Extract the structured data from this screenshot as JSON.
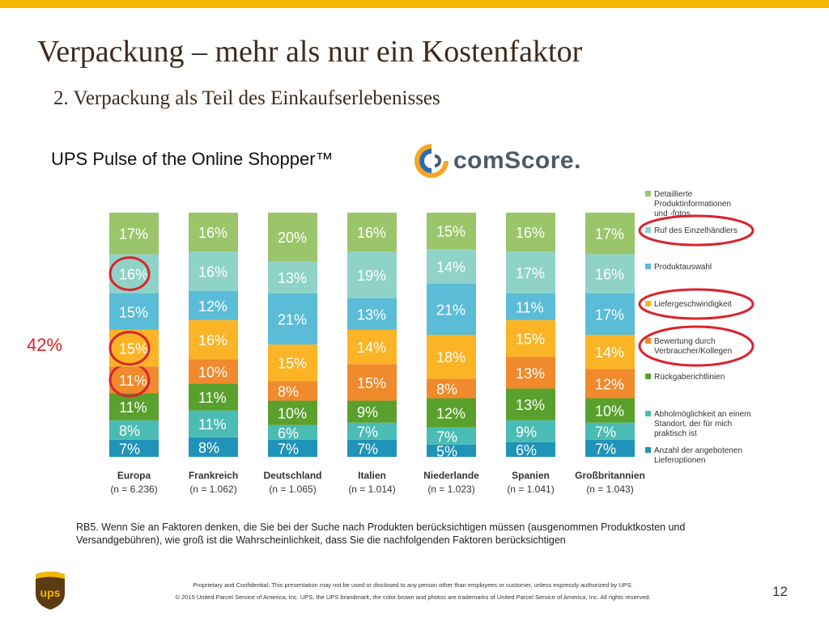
{
  "header": {
    "title": "Verpackung – mehr als nur ein Kostenfaktor",
    "subtitle": "2. Verpackung als Teil des Einkaufserlebenisses",
    "pulse_title": "UPS Pulse of the Online Shopper™",
    "comscore_logo_text": "comScore."
  },
  "callout_label": "42%",
  "chart_data": {
    "type": "bar",
    "stacked": true,
    "normalized": true,
    "categories": [
      "Europa",
      "Frankreich",
      "Deutschland",
      "Italien",
      "Niederlande",
      "Spanien",
      "Großbritannien"
    ],
    "sample_sizes": [
      "(n = 6.236)",
      "(n = 1.062)",
      "(n = 1.065)",
      "(n = 1.014)",
      "(n = 1.023)",
      "(n = 1.041)",
      "(n = 1.043)"
    ],
    "series": [
      {
        "name": "Anzahl der angebotenen Lieferoptionen",
        "color": "#1f93b8",
        "values": [
          7,
          8,
          7,
          7,
          5,
          6,
          7
        ]
      },
      {
        "name": "Abholmöglichkeit an einem Standort, der für mich praktisch ist",
        "color": "#4bbcb4",
        "values": [
          8,
          11,
          6,
          7,
          7,
          9,
          7
        ]
      },
      {
        "name": "Rückgaberichtlinien",
        "color": "#5aa02c",
        "values": [
          11,
          11,
          10,
          9,
          12,
          13,
          10
        ]
      },
      {
        "name": "Bewertung durch Verbraucher/Kollegen",
        "color": "#f08a2c",
        "values": [
          11,
          10,
          8,
          15,
          8,
          13,
          12
        ]
      },
      {
        "name": "Liefergeschwindigkeit",
        "color": "#fbb425",
        "values": [
          15,
          16,
          15,
          14,
          18,
          15,
          14
        ]
      },
      {
        "name": "Produktauswahl",
        "color": "#5bbcd8",
        "values": [
          15,
          12,
          21,
          13,
          21,
          11,
          17
        ]
      },
      {
        "name": "Ruf des Einzelhändlers",
        "color": "#8fd3c8",
        "values": [
          16,
          16,
          13,
          19,
          14,
          17,
          16
        ]
      },
      {
        "name": "Detaillierte Produktinformationen und -fotos",
        "color": "#9bc56a",
        "values": [
          17,
          16,
          20,
          16,
          15,
          16,
          17
        ]
      }
    ],
    "legend_lines": [
      [
        "Detaillierte",
        "Produktinformationen",
        "und -fotos"
      ],
      [
        "Ruf des Einzelhändlers"
      ],
      [
        "Produktauswahl"
      ],
      [
        "Liefergeschwindigkeit"
      ],
      [
        "Bewertung durch",
        "Verbraucher/Kollegen"
      ],
      [
        "Rückgaberichtlinien"
      ],
      [
        "Abholmöglichkeit an einem",
        "Standort, der für mich",
        "praktisch ist"
      ],
      [
        "Anzahl der angebotenen",
        "Lieferoptionen"
      ]
    ],
    "legend_placement": "right",
    "highlighted_legend_items": [
      "Ruf des Einzelhändlers",
      "Liefergeschwindigkeit",
      "Bewertung durch Verbraucher/Kollegen"
    ],
    "highlighted_segments": {
      "category": "Europa",
      "series": [
        "Ruf des Einzelhändlers",
        "Liefergeschwindigkeit",
        "Bewertung durch Verbraucher/Kollegen"
      ]
    },
    "highlight_color": "#d9232d",
    "label_color": "#ffffff"
  },
  "footnote": "RB5. Wenn Sie an Faktoren denken, die Sie bei der Suche nach Produkten berücksichtigen müssen (ausgenommen Produktkosten und Versandgebühren), wie groß ist die Wahrscheinlichkeit, dass Sie die nachfolgenden Faktoren berücksichtigen",
  "legal_line_1": "Proprietary and Confidential: This presentation may not be used or disclosed to any person other than employees or customer, unless expressly authorized by UPS.",
  "legal_line_2": "© 2015 United Parcel Service of America, Inc. UPS, the UPS brandmark, the color brown and photos are trademarks of United Parcel Service of America, Inc. All rights reserved.",
  "page_number": "12",
  "colors": {
    "accent_bar": "#f5b800",
    "title_text": "#3d2b1f",
    "ups_brown": "#5a3b12",
    "ups_gold": "#f5b800"
  }
}
